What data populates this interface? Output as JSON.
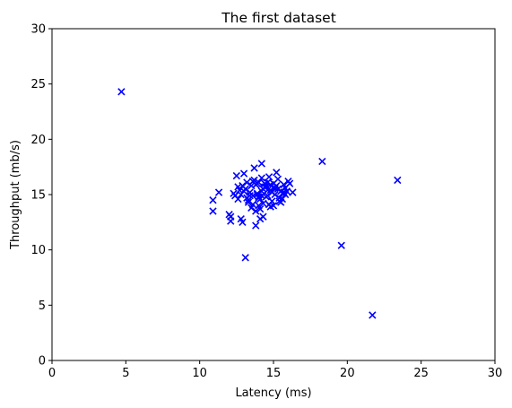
{
  "chart_data": {
    "type": "scatter",
    "title": "The first dataset",
    "xlabel": "Latency (ms)",
    "ylabel": "Throughput (mb/s)",
    "xlim": [
      0,
      30
    ],
    "ylim": [
      0,
      30
    ],
    "xticks": [
      "0",
      "5",
      "10",
      "15",
      "20",
      "25",
      "30"
    ],
    "yticks": [
      "0",
      "5",
      "10",
      "15",
      "20",
      "25",
      "30"
    ],
    "grid": false,
    "marker": "x",
    "marker_color": "#0000ff",
    "x": [
      4.7,
      18.3,
      23.4,
      19.6,
      21.7,
      13.1,
      10.9,
      10.9,
      11.3,
      12.0,
      12.1,
      12.1,
      12.8,
      12.9,
      13.0,
      13.8,
      12.5,
      13.7,
      14.2,
      13.2,
      14.3,
      14.1,
      16.3,
      15.2,
      15.0,
      16.0,
      14.8,
      13.6,
      15.5,
      13.9,
      14.6,
      14.4,
      13.4,
      15.7,
      12.6,
      14.9,
      15.3,
      14.0,
      13.5,
      15.1,
      14.7,
      13.3,
      14.5,
      15.8,
      12.7,
      16.1,
      13.8,
      14.2,
      15.4,
      14.0,
      13.6,
      12.9,
      15.6,
      14.3,
      13.1,
      14.8,
      15.9,
      13.7,
      14.1,
      15.0,
      14.6,
      12.4,
      13.9,
      15.2,
      14.4,
      13.3,
      14.9,
      15.5,
      12.8,
      14.2,
      13.5,
      15.1,
      14.0,
      13.8,
      14.7,
      15.3,
      12.3,
      13.2,
      14.5,
      15.8,
      14.1,
      13.6,
      14.8,
      15.4,
      13.0,
      14.3,
      15.6,
      13.4,
      14.6,
      12.6,
      15.7,
      14.0,
      13.9,
      14.2,
      15.0
    ],
    "y": [
      24.3,
      18.0,
      16.3,
      10.4,
      4.1,
      9.3,
      13.5,
      14.5,
      15.2,
      13.2,
      12.6,
      13.0,
      12.8,
      12.5,
      16.9,
      12.2,
      16.7,
      17.4,
      17.8,
      16.1,
      13.0,
      12.8,
      15.2,
      17.0,
      15.6,
      16.2,
      13.9,
      14.1,
      15.3,
      16.0,
      14.9,
      15.7,
      15.2,
      15.9,
      14.6,
      14.4,
      16.4,
      14.0,
      15.8,
      15.0,
      16.6,
      14.3,
      14.8,
      15.6,
      15.4,
      16.0,
      13.5,
      15.3,
      14.7,
      16.1,
      14.9,
      15.8,
      15.1,
      14.2,
      15.5,
      15.9,
      15.3,
      16.3,
      14.6,
      14.0,
      15.4,
      14.9,
      15.0,
      15.8,
      16.0,
      14.5,
      15.2,
      14.3,
      15.0,
      16.5,
      13.8,
      15.6,
      14.8,
      15.9,
      14.1,
      15.5,
      15.1,
      14.7,
      15.7,
      15.0,
      13.7,
      16.2,
      15.4,
      14.4,
      15.3,
      15.5,
      14.6,
      14.9,
      16.1,
      15.7,
      15.2,
      14.7,
      15.1,
      14.9,
      16.0
    ]
  }
}
